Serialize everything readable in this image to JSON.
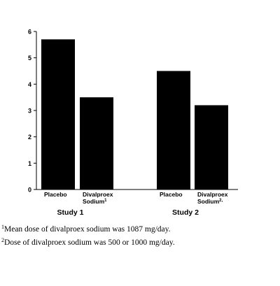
{
  "chart_data": {
    "type": "bar",
    "title": "",
    "xlabel": "",
    "ylabel": "",
    "ylim": [
      0,
      6
    ],
    "yticks": [
      0,
      1,
      2,
      3,
      4,
      5,
      6
    ],
    "grid": false,
    "groups": [
      {
        "label": "Study 1",
        "bars": [
          {
            "label": [
              "Placebo"
            ],
            "superscript": "",
            "value": 5.7
          },
          {
            "label": [
              "Divalproex",
              "Sodium"
            ],
            "superscript": "1",
            "value": 3.5
          }
        ]
      },
      {
        "label": "Study 2",
        "bars": [
          {
            "label": [
              "Placebo"
            ],
            "superscript": "",
            "value": 4.5
          },
          {
            "label": [
              "Divalproex",
              "Sodium"
            ],
            "superscript": "2,",
            "value": 3.2
          }
        ]
      }
    ],
    "bar_color": "#000000"
  },
  "footnotes": [
    {
      "mark": "1",
      "text": "Mean dose of divalproex sodium was 1087 mg/day."
    },
    {
      "mark": "2",
      "text": "Dose of divalproex sodium was 500 or 1000 mg/day."
    }
  ]
}
